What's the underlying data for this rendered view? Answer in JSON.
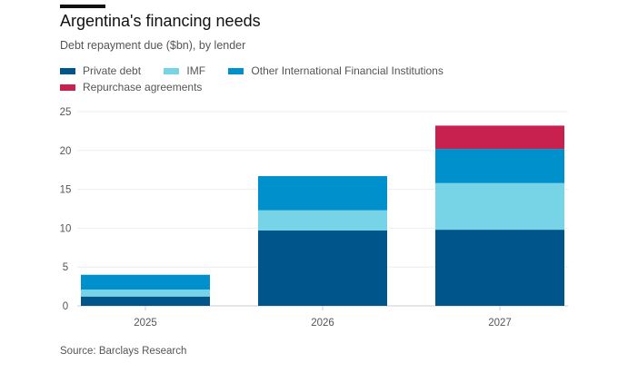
{
  "title": "Argentina's financing needs",
  "subtitle": "Debt repayment due ($bn), by lender",
  "source": "Source: Barclays Research",
  "chart_data": {
    "type": "bar",
    "stacked": true,
    "categories": [
      "2025",
      "2026",
      "2027"
    ],
    "series": [
      {
        "name": "Private debt",
        "color": "#00558b",
        "values": [
          1.2,
          9.7,
          9.8
        ]
      },
      {
        "name": "IMF",
        "color": "#77d3e6",
        "values": [
          0.9,
          2.6,
          6.0
        ]
      },
      {
        "name": "Other International Financial Institutions",
        "color": "#0090cc",
        "values": [
          1.9,
          4.4,
          4.4
        ]
      },
      {
        "name": "Repurchase agreements",
        "color": "#c8204f",
        "values": [
          0,
          0,
          3.0
        ]
      }
    ],
    "ylim": [
      0,
      25
    ],
    "yticks": [
      "0",
      "5",
      "10",
      "15",
      "20",
      "25"
    ],
    "grid": true,
    "legend": "top-left"
  }
}
